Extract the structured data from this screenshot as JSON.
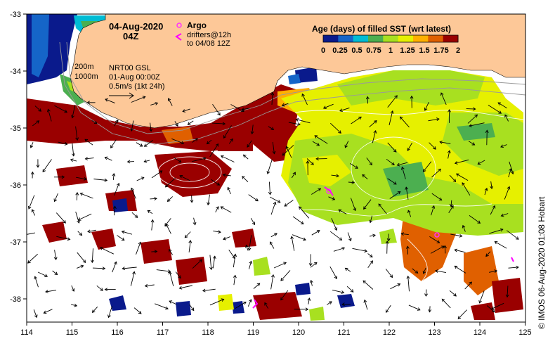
{
  "header": {
    "date": "04-Aug-2020",
    "time": "04Z"
  },
  "legend": {
    "argo_label": "Argo",
    "drifters_label": "drifters@12h",
    "drifters_sub": "to 04/08 12Z",
    "depth_200": "200m",
    "depth_1000": "1000m",
    "nrt_line1": "NRT00 GSL",
    "nrt_line2": "01-Aug 00:00Z",
    "nrt_line3": "0.5m/s (1kt 24h)"
  },
  "colorbar": {
    "title": "Age (days) of filled SST (wrt latest)",
    "ticks": [
      "0",
      "0.25",
      "0.5",
      "0.75",
      "1",
      "1.25",
      "1.5",
      "1.75",
      "2"
    ],
    "colors": [
      "#0a1a8c",
      "#1565c8",
      "#00bcd4",
      "#4caf50",
      "#a8e020",
      "#e6f000",
      "#ffb000",
      "#e06000",
      "#9a0000"
    ]
  },
  "axes": {
    "lon_ticks": [
      "114",
      "115",
      "116",
      "117",
      "118",
      "119",
      "120",
      "121",
      "122",
      "123",
      "124",
      "125"
    ],
    "lat_ticks": [
      "-33",
      "-34",
      "-35",
      "-36",
      "-37",
      "-38"
    ]
  },
  "credit": "© IMOS 06-Aug-2020 01:08 Hobart",
  "colors": {
    "land": "#fdc898",
    "argo": "#ff33ff",
    "drifter": "#ff00ff"
  }
}
